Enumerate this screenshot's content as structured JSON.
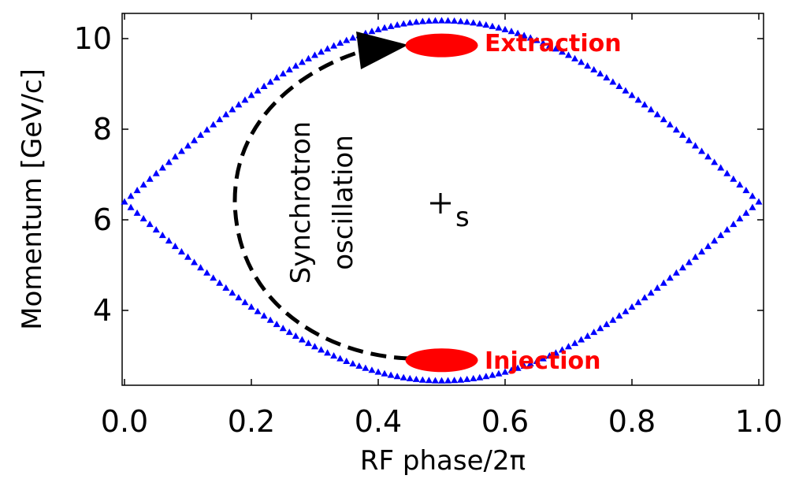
{
  "chart_data": {
    "type": "scatter",
    "title": "",
    "xlabel": "RF phase/2π",
    "ylabel": "Momentum [GeV/c]",
    "xlim": [
      0.0,
      1.0
    ],
    "ylim": [
      2.4,
      10.5
    ],
    "x_ticks": [
      "0.0",
      "0.2",
      "0.4",
      "0.6",
      "0.8",
      "1.0"
    ],
    "y_ticks": [
      "4",
      "6",
      "8",
      "10"
    ],
    "grid": false,
    "separatrix": {
      "color": "#0000ff",
      "marker": "triangle",
      "center_y": 6.4,
      "upper_y_max": 10.4,
      "lower_y_min": 2.45
    },
    "extraction": {
      "label": "Extraction",
      "x": 0.5,
      "y": 9.85,
      "color": "#ff0000"
    },
    "injection": {
      "label": "Injection",
      "x": 0.5,
      "y": 2.9,
      "color": "#ff0000"
    },
    "center_marker": {
      "label": "s",
      "x": 0.5,
      "y": 6.35
    },
    "annotation": {
      "line1": "Synchrotron",
      "line2": "oscillation"
    }
  }
}
